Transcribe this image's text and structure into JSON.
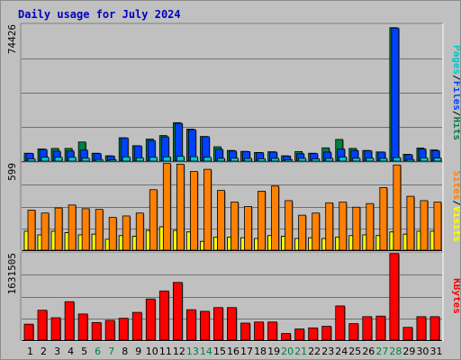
{
  "title": "Daily usage for July 2024",
  "chart_data": [
    {
      "type": "bar",
      "panel": "hits-files-pages",
      "y_max_label": "74426",
      "ylim": [
        0,
        74426
      ],
      "legend_text": [
        "Pages",
        "/",
        "Files",
        "/",
        "Hits"
      ],
      "legend_colors": [
        "#00c8c8",
        "#000000",
        "#0040ff",
        "#000000",
        "#008040"
      ],
      "categories": [
        "1",
        "2",
        "3",
        "4",
        "5",
        "6",
        "7",
        "8",
        "9",
        "10",
        "11",
        "12",
        "13",
        "14",
        "15",
        "16",
        "17",
        "18",
        "19",
        "20",
        "21",
        "22",
        "23",
        "24",
        "25",
        "26",
        "27",
        "28",
        "29",
        "30",
        "31"
      ],
      "series": [
        {
          "name": "Hits",
          "color": "#008040",
          "values": [
            4300,
            6600,
            6900,
            6900,
            10400,
            4300,
            2900,
            12700,
            8400,
            12000,
            13900,
            20900,
            17400,
            13400,
            7800,
            5800,
            5300,
            4700,
            5100,
            2900,
            5200,
            4300,
            7200,
            11800,
            6900,
            5800,
            5000,
            72600,
            3700,
            7100,
            6100
          ]
        },
        {
          "name": "Files",
          "color": "#0040ff",
          "values": [
            4200,
            6300,
            5400,
            5500,
            6000,
            4100,
            2700,
            12600,
            8300,
            11200,
            13200,
            20600,
            17100,
            13300,
            6400,
            5500,
            5200,
            4600,
            4900,
            2700,
            4000,
            4100,
            4900,
            6600,
            5800,
            5600,
            4900,
            72400,
            3500,
            6600,
            5700
          ]
        },
        {
          "name": "Pages",
          "color": "#00c8c8",
          "values": [
            1200,
            2100,
            2100,
            2100,
            1600,
            900,
            700,
            2300,
            1800,
            2100,
            2300,
            2600,
            2400,
            2100,
            1500,
            1600,
            1400,
            1300,
            1500,
            800,
            1500,
            1200,
            1500,
            2200,
            1600,
            1600,
            1500,
            1900,
            900,
            1800,
            1700
          ]
        }
      ]
    },
    {
      "type": "bar",
      "panel": "visits-sites",
      "y_max_label": "599",
      "ylim": [
        0,
        599
      ],
      "legend_text": [
        "Sites",
        "/",
        "Visits"
      ],
      "legend_colors": [
        "#ff8000",
        "#000000",
        "#ffff00"
      ],
      "categories": [
        "1",
        "2",
        "3",
        "4",
        "5",
        "6",
        "7",
        "8",
        "9",
        "10",
        "11",
        "12",
        "13",
        "14",
        "15",
        "16",
        "17",
        "18",
        "19",
        "20",
        "21",
        "22",
        "23",
        "24",
        "25",
        "26",
        "27",
        "28",
        "29",
        "30",
        "31"
      ],
      "series": [
        {
          "name": "Visits",
          "color": "#ffff00",
          "values": [
            130,
            105,
            130,
            120,
            105,
            110,
            75,
            100,
            95,
            135,
            160,
            135,
            125,
            60,
            90,
            90,
            85,
            80,
            100,
            95,
            80,
            85,
            80,
            90,
            100,
            105,
            100,
            125,
            110,
            130,
            130
          ]
        },
        {
          "name": "Sites",
          "color": "#ff8000",
          "values": [
            275,
            255,
            290,
            310,
            285,
            280,
            225,
            235,
            255,
            415,
            595,
            590,
            540,
            555,
            410,
            330,
            300,
            405,
            440,
            340,
            240,
            255,
            325,
            330,
            295,
            320,
            430,
            585,
            370,
            340,
            330
          ]
        }
      ]
    },
    {
      "type": "bar",
      "panel": "kbytes",
      "y_max_label": "1631505",
      "ylim": [
        0,
        1631505
      ],
      "legend_text": [
        "KBytes"
      ],
      "legend_colors": [
        "#ff0000"
      ],
      "categories": [
        "1",
        "2",
        "3",
        "4",
        "5",
        "6",
        "7",
        "8",
        "9",
        "10",
        "11",
        "12",
        "13",
        "14",
        "15",
        "16",
        "17",
        "18",
        "19",
        "20",
        "21",
        "22",
        "23",
        "24",
        "25",
        "26",
        "27",
        "28",
        "29",
        "30",
        "31"
      ],
      "series": [
        {
          "name": "KBytes",
          "color": "#ff0000",
          "values": [
            300000,
            560000,
            420000,
            720000,
            490000,
            330000,
            370000,
            410000,
            520000,
            770000,
            920000,
            1080000,
            570000,
            540000,
            610000,
            610000,
            320000,
            340000,
            340000,
            125000,
            210000,
            230000,
            260000,
            640000,
            310000,
            440000,
            450000,
            1620000,
            240000,
            440000,
            440000
          ]
        }
      ]
    }
  ],
  "x_labels": [
    {
      "text": "1",
      "weekend": false
    },
    {
      "text": "2",
      "weekend": false
    },
    {
      "text": "3",
      "weekend": false
    },
    {
      "text": "4",
      "weekend": false
    },
    {
      "text": "5",
      "weekend": false
    },
    {
      "text": "6",
      "weekend": true
    },
    {
      "text": "7",
      "weekend": true
    },
    {
      "text": "8",
      "weekend": false
    },
    {
      "text": "9",
      "weekend": false
    },
    {
      "text": "10",
      "weekend": false
    },
    {
      "text": "11",
      "weekend": false
    },
    {
      "text": "12",
      "weekend": false
    },
    {
      "text": "13",
      "weekend": true
    },
    {
      "text": "14",
      "weekend": true
    },
    {
      "text": "15",
      "weekend": false
    },
    {
      "text": "16",
      "weekend": false
    },
    {
      "text": "17",
      "weekend": false
    },
    {
      "text": "18",
      "weekend": false
    },
    {
      "text": "19",
      "weekend": false
    },
    {
      "text": "20",
      "weekend": true
    },
    {
      "text": "21",
      "weekend": true
    },
    {
      "text": "22",
      "weekend": false
    },
    {
      "text": "23",
      "weekend": false
    },
    {
      "text": "24",
      "weekend": false
    },
    {
      "text": "25",
      "weekend": false
    },
    {
      "text": "26",
      "weekend": false
    },
    {
      "text": "27",
      "weekend": true
    },
    {
      "text": "28",
      "weekend": true
    },
    {
      "text": "29",
      "weekend": false
    },
    {
      "text": "30",
      "weekend": false
    },
    {
      "text": "31",
      "weekend": false
    }
  ],
  "colors": {
    "weekday_label": "#000000",
    "weekend_label": "#008040",
    "title": "#0000c0",
    "background": "#c0c0c0",
    "gridline": "#707070"
  }
}
